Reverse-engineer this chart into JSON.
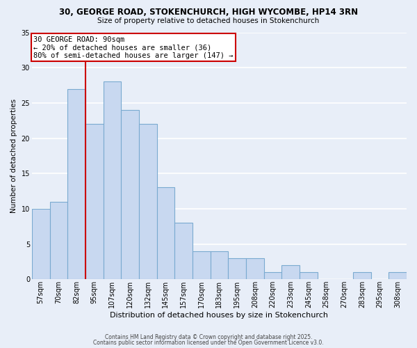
{
  "title1": "30, GEORGE ROAD, STOKENCHURCH, HIGH WYCOMBE, HP14 3RN",
  "title2": "Size of property relative to detached houses in Stokenchurch",
  "xlabel": "Distribution of detached houses by size in Stokenchurch",
  "ylabel": "Number of detached properties",
  "bar_labels": [
    "57sqm",
    "70sqm",
    "82sqm",
    "95sqm",
    "107sqm",
    "120sqm",
    "132sqm",
    "145sqm",
    "157sqm",
    "170sqm",
    "183sqm",
    "195sqm",
    "208sqm",
    "220sqm",
    "233sqm",
    "245sqm",
    "258sqm",
    "270sqm",
    "283sqm",
    "295sqm",
    "308sqm"
  ],
  "bar_values": [
    10,
    11,
    27,
    22,
    28,
    24,
    22,
    13,
    8,
    4,
    4,
    3,
    3,
    1,
    2,
    1,
    0,
    0,
    1,
    0,
    1
  ],
  "bar_color": "#c8d8f0",
  "bar_edge_color": "#7aaad0",
  "background_color": "#e8eef8",
  "grid_color": "#ffffff",
  "vline_x": 2.5,
  "vline_color": "#cc0000",
  "annotation_line1": "30 GEORGE ROAD: 90sqm",
  "annotation_line2": "← 20% of detached houses are smaller (36)",
  "annotation_line3": "80% of semi-detached houses are larger (147) →",
  "annotation_box_color": "#ffffff",
  "annotation_box_edge": "#cc0000",
  "ylim": [
    0,
    35
  ],
  "yticks": [
    0,
    5,
    10,
    15,
    20,
    25,
    30,
    35
  ],
  "footer1": "Contains HM Land Registry data © Crown copyright and database right 2025.",
  "footer2": "Contains public sector information licensed under the Open Government Licence v3.0.",
  "title1_fontsize": 8.5,
  "title2_fontsize": 7.5,
  "xlabel_fontsize": 8.0,
  "ylabel_fontsize": 7.5,
  "tick_fontsize": 7.0,
  "annotation_fontsize": 7.5,
  "footer_fontsize": 5.5
}
